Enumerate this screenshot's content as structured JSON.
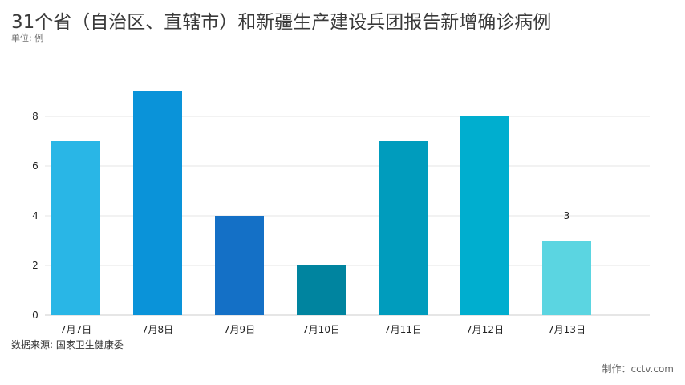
{
  "header": {
    "title": "31个省（自治区、直辖市）和新疆生产建设兵团报告新增确诊病例",
    "unit": "单位: 例"
  },
  "footer": {
    "source": "数据来源: 国家卫生健康委",
    "credit": "制作：cctv.com"
  },
  "chart_data": {
    "type": "bar",
    "categories": [
      "7月7日",
      "7月8日",
      "7月9日",
      "7月10日",
      "7月11日",
      "7月12日",
      "7月13日"
    ],
    "values": [
      7,
      9,
      4,
      2,
      7,
      8,
      3
    ],
    "colors": [
      "#29b6e6",
      "#0a93d9",
      "#1470c6",
      "#00849f",
      "#009cbd",
      "#00aecf",
      "#5bd5e1"
    ],
    "ylim": [
      0,
      10
    ],
    "yticks": [
      0,
      2,
      4,
      6,
      8
    ],
    "data_labels": [
      {
        "index": 6,
        "text": "3"
      }
    ],
    "grid": true,
    "legend": "none"
  }
}
